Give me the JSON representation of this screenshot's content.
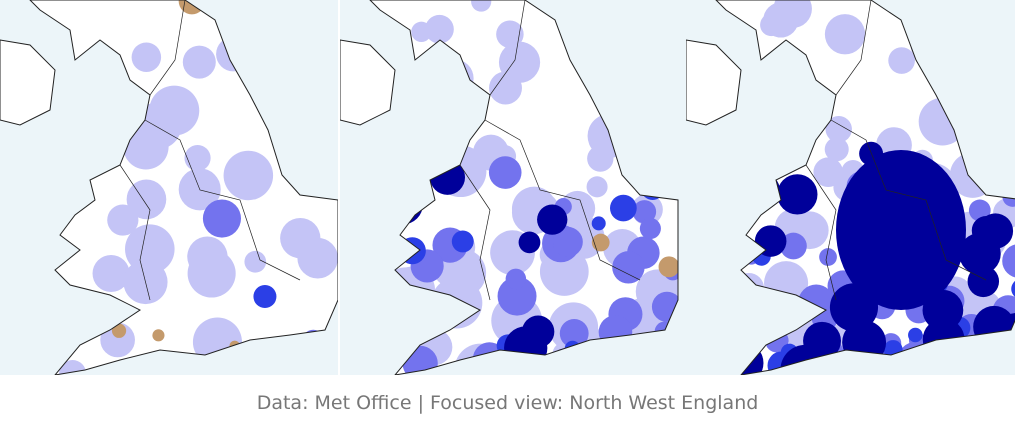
{
  "caption": "Data: Met Office | Focused view: North West England",
  "map": {
    "panels": 3,
    "colors": {
      "sea": "#ecf5f9",
      "land": "#ffffff",
      "border": "#222222",
      "light_blue": "#c4c4f6",
      "mid_blue": "#7373ee",
      "blue": "#2b3fe6",
      "dark_blue": "#00009a",
      "brown": "#c49a6c"
    },
    "panel_levels": [
      {
        "light": 0.35,
        "mid": 0.05,
        "dark": 0.0,
        "brown": 0.12
      },
      {
        "light": 0.55,
        "mid": 0.35,
        "dark": 0.2,
        "brown": 0.1
      },
      {
        "light": 0.5,
        "mid": 0.45,
        "dark": 0.55,
        "brown": 0.04
      }
    ]
  }
}
